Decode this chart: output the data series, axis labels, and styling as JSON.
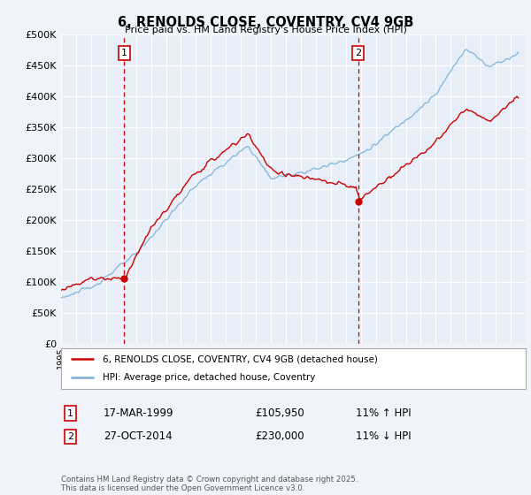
{
  "title": "6, RENOLDS CLOSE, COVENTRY, CV4 9GB",
  "subtitle": "Price paid vs. HM Land Registry's House Price Index (HPI)",
  "ylim": [
    0,
    500000
  ],
  "yticks": [
    0,
    50000,
    100000,
    150000,
    200000,
    250000,
    300000,
    350000,
    400000,
    450000,
    500000
  ],
  "background_color": "#f0f4fa",
  "plot_bg_color": "#e8eef8",
  "grid_color": "#ffffff",
  "sale1_date_num": 1999.21,
  "sale1_price": 105950,
  "sale2_date_num": 2014.82,
  "sale2_price": 230000,
  "legend_line1": "6, RENOLDS CLOSE, COVENTRY, CV4 9GB (detached house)",
  "legend_line2": "HPI: Average price, detached house, Coventry",
  "table_row1": [
    "1",
    "17-MAR-1999",
    "£105,950",
    "11% ↑ HPI"
  ],
  "table_row2": [
    "2",
    "27-OCT-2014",
    "£230,000",
    "11% ↓ HPI"
  ],
  "footer": "Contains HM Land Registry data © Crown copyright and database right 2025.\nThis data is licensed under the Open Government Licence v3.0.",
  "hpi_color": "#7bafd4",
  "sale_color": "#cc0000",
  "vline_color": "#cc0000",
  "marker_box_color": "#cc0000",
  "xmin": 1995,
  "xmax": 2026
}
